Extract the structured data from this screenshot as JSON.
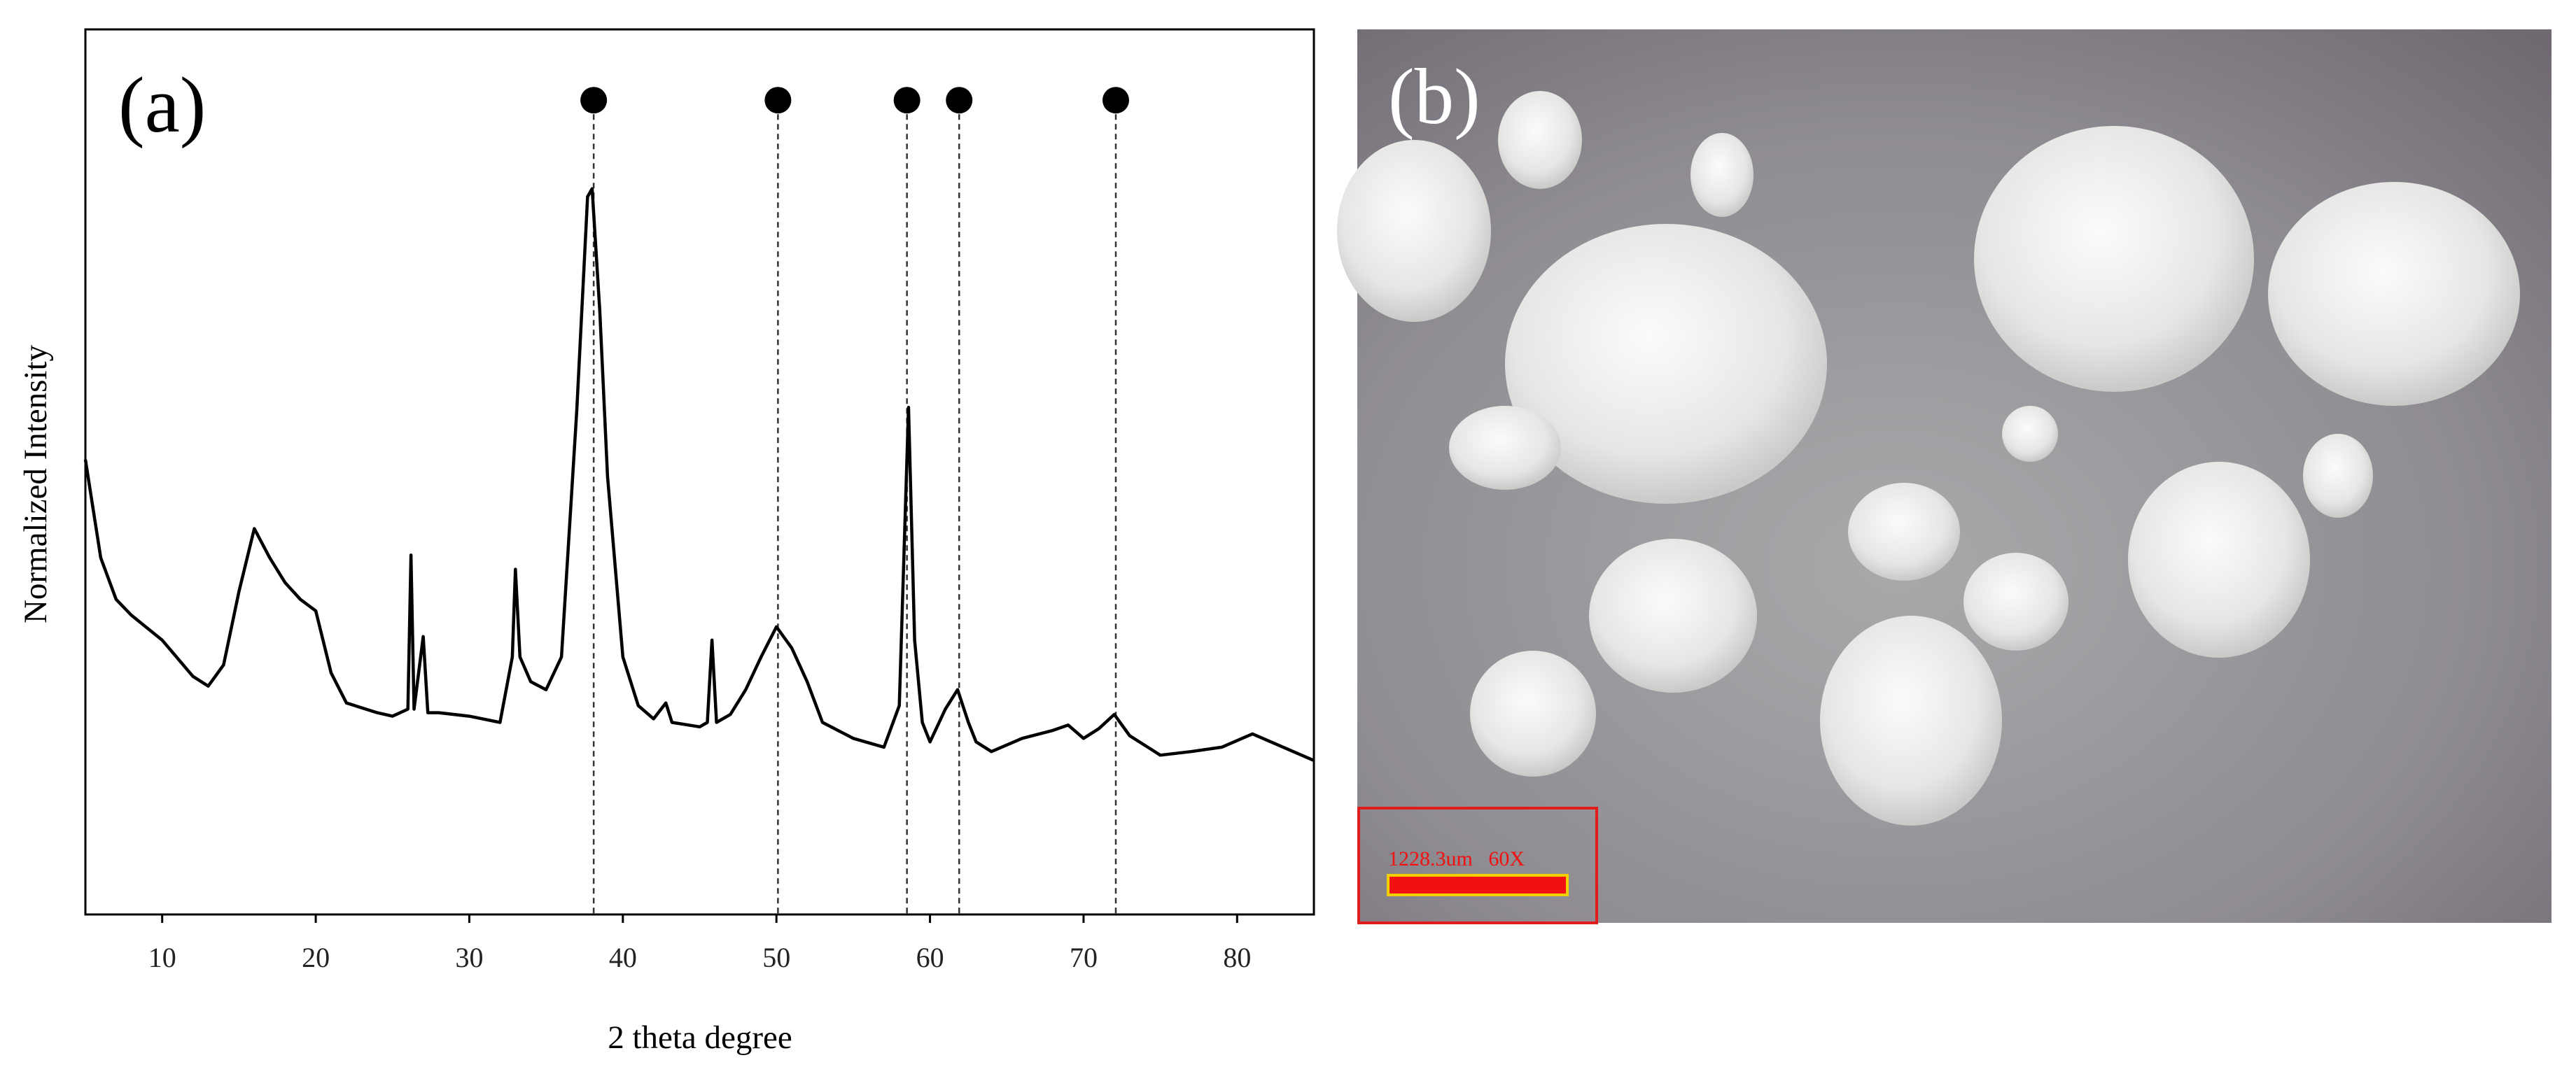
{
  "chart_data": {
    "type": "line",
    "panel_label": "(a)",
    "x_label": "2 theta degree",
    "y_label": "Normalized Intensity",
    "xlim": [
      5,
      85
    ],
    "ylim": [
      0,
      100
    ],
    "xticks": [
      10,
      20,
      30,
      40,
      50,
      60,
      70,
      80
    ],
    "color": "#000000",
    "x": [
      5,
      6,
      7,
      8,
      10,
      12,
      13,
      14,
      15,
      16,
      17,
      18,
      19,
      20,
      21,
      22,
      24,
      25,
      26,
      26.2,
      26.4,
      27,
      27.3,
      28,
      30,
      32,
      32.8,
      33,
      33.3,
      34,
      35,
      36,
      37,
      37.7,
      38,
      38.5,
      39,
      40,
      41,
      42,
      42.8,
      43.2,
      45,
      45.5,
      45.8,
      46.1,
      47,
      48,
      49,
      50,
      51,
      52,
      53,
      55,
      57,
      58,
      58.6,
      59,
      59.5,
      60,
      61,
      61.8,
      62.5,
      63,
      64,
      66,
      68,
      69,
      70,
      71,
      72,
      73,
      75,
      77,
      79,
      81,
      83,
      85
    ],
    "values": [
      51.4,
      40.3,
      35.6,
      33.8,
      31,
      26.9,
      25.8,
      28.2,
      36.5,
      43.6,
      40.3,
      37.5,
      35.6,
      34.3,
      27.3,
      23.9,
      22.8,
      22.4,
      23.2,
      40.6,
      23.2,
      31.4,
      22.8,
      22.8,
      22.4,
      21.7,
      29.1,
      39,
      29.1,
      26.3,
      25.4,
      29.1,
      57,
      81.1,
      82,
      68.1,
      49.5,
      29.1,
      23.6,
      22.1,
      23.9,
      21.7,
      21.2,
      21.7,
      31,
      21.7,
      22.6,
      25.4,
      29.1,
      32.5,
      30.1,
      26.3,
      21.7,
      19.9,
      18.9,
      23.6,
      57.3,
      31,
      21.7,
      19.5,
      23.2,
      25.4,
      21.7,
      19.5,
      18.4,
      19.9,
      20.8,
      21.4,
      19.9,
      21,
      22.6,
      20.2,
      18,
      18.4,
      18.9,
      20.4,
      18.9,
      17.4
    ],
    "markers": [
      38.1,
      50.1,
      58.5,
      61.9,
      72.1
    ],
    "marker_y": 92
  },
  "image_panel": {
    "label": "(b)",
    "scale_bar": "1228.3um   60X"
  }
}
